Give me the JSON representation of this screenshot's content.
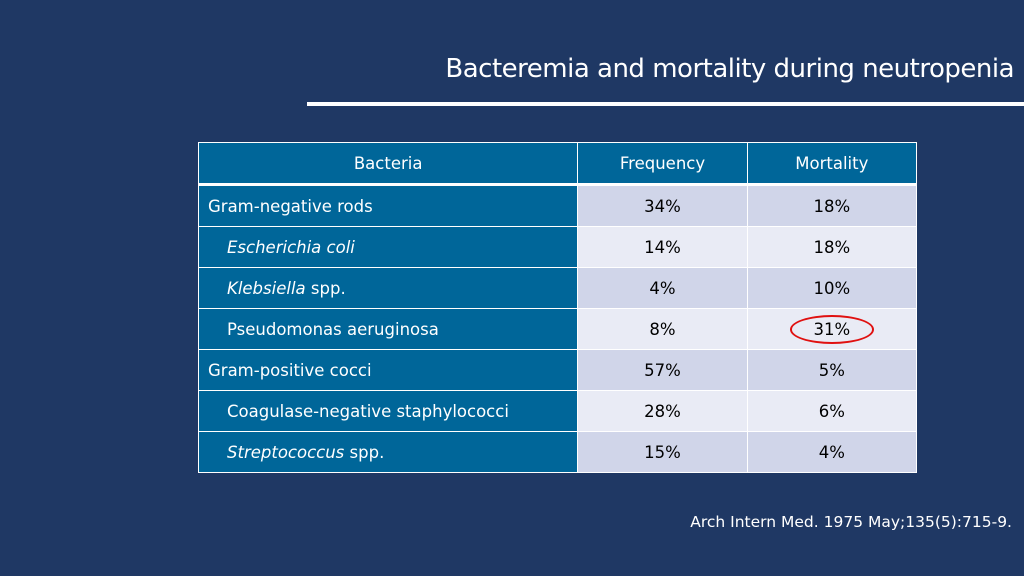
{
  "title": "Bacteremia and mortality during neutropenia",
  "table": {
    "headers": [
      "Bacteria",
      "Frequency",
      "Mortality"
    ],
    "rows": [
      {
        "name": "Gram-negative rods",
        "italic": "",
        "suffix": "",
        "frequency": "34%",
        "mortality": "18%"
      },
      {
        "name": "",
        "italic": "Escherichia coli",
        "suffix": "",
        "frequency": "14%",
        "mortality": "18%"
      },
      {
        "name": "",
        "italic": "Klebsiella",
        "suffix": " spp.",
        "frequency": "4%",
        "mortality": "10%"
      },
      {
        "name": "Pseudomonas aeruginosa",
        "italic": "",
        "suffix": "",
        "frequency": "8%",
        "mortality": "31%"
      },
      {
        "name": "Gram-positive cocci",
        "italic": "",
        "suffix": "",
        "frequency": "57%",
        "mortality": "5%"
      },
      {
        "name": "Coagulase-negative staphylococci",
        "italic": "",
        "suffix": "",
        "frequency": "28%",
        "mortality": "6%"
      },
      {
        "name": "",
        "italic": "Streptococcus",
        "suffix": " spp.",
        "frequency": "15%",
        "mortality": "4%"
      }
    ]
  },
  "citation": "Arch Intern Med. 1975 May;135(5):715-9.",
  "colors": {
    "background": "#1f3864",
    "header": "#006699",
    "row_odd": "#d0d5e9",
    "row_even": "#e9ebf5",
    "highlight": "#e01010"
  }
}
